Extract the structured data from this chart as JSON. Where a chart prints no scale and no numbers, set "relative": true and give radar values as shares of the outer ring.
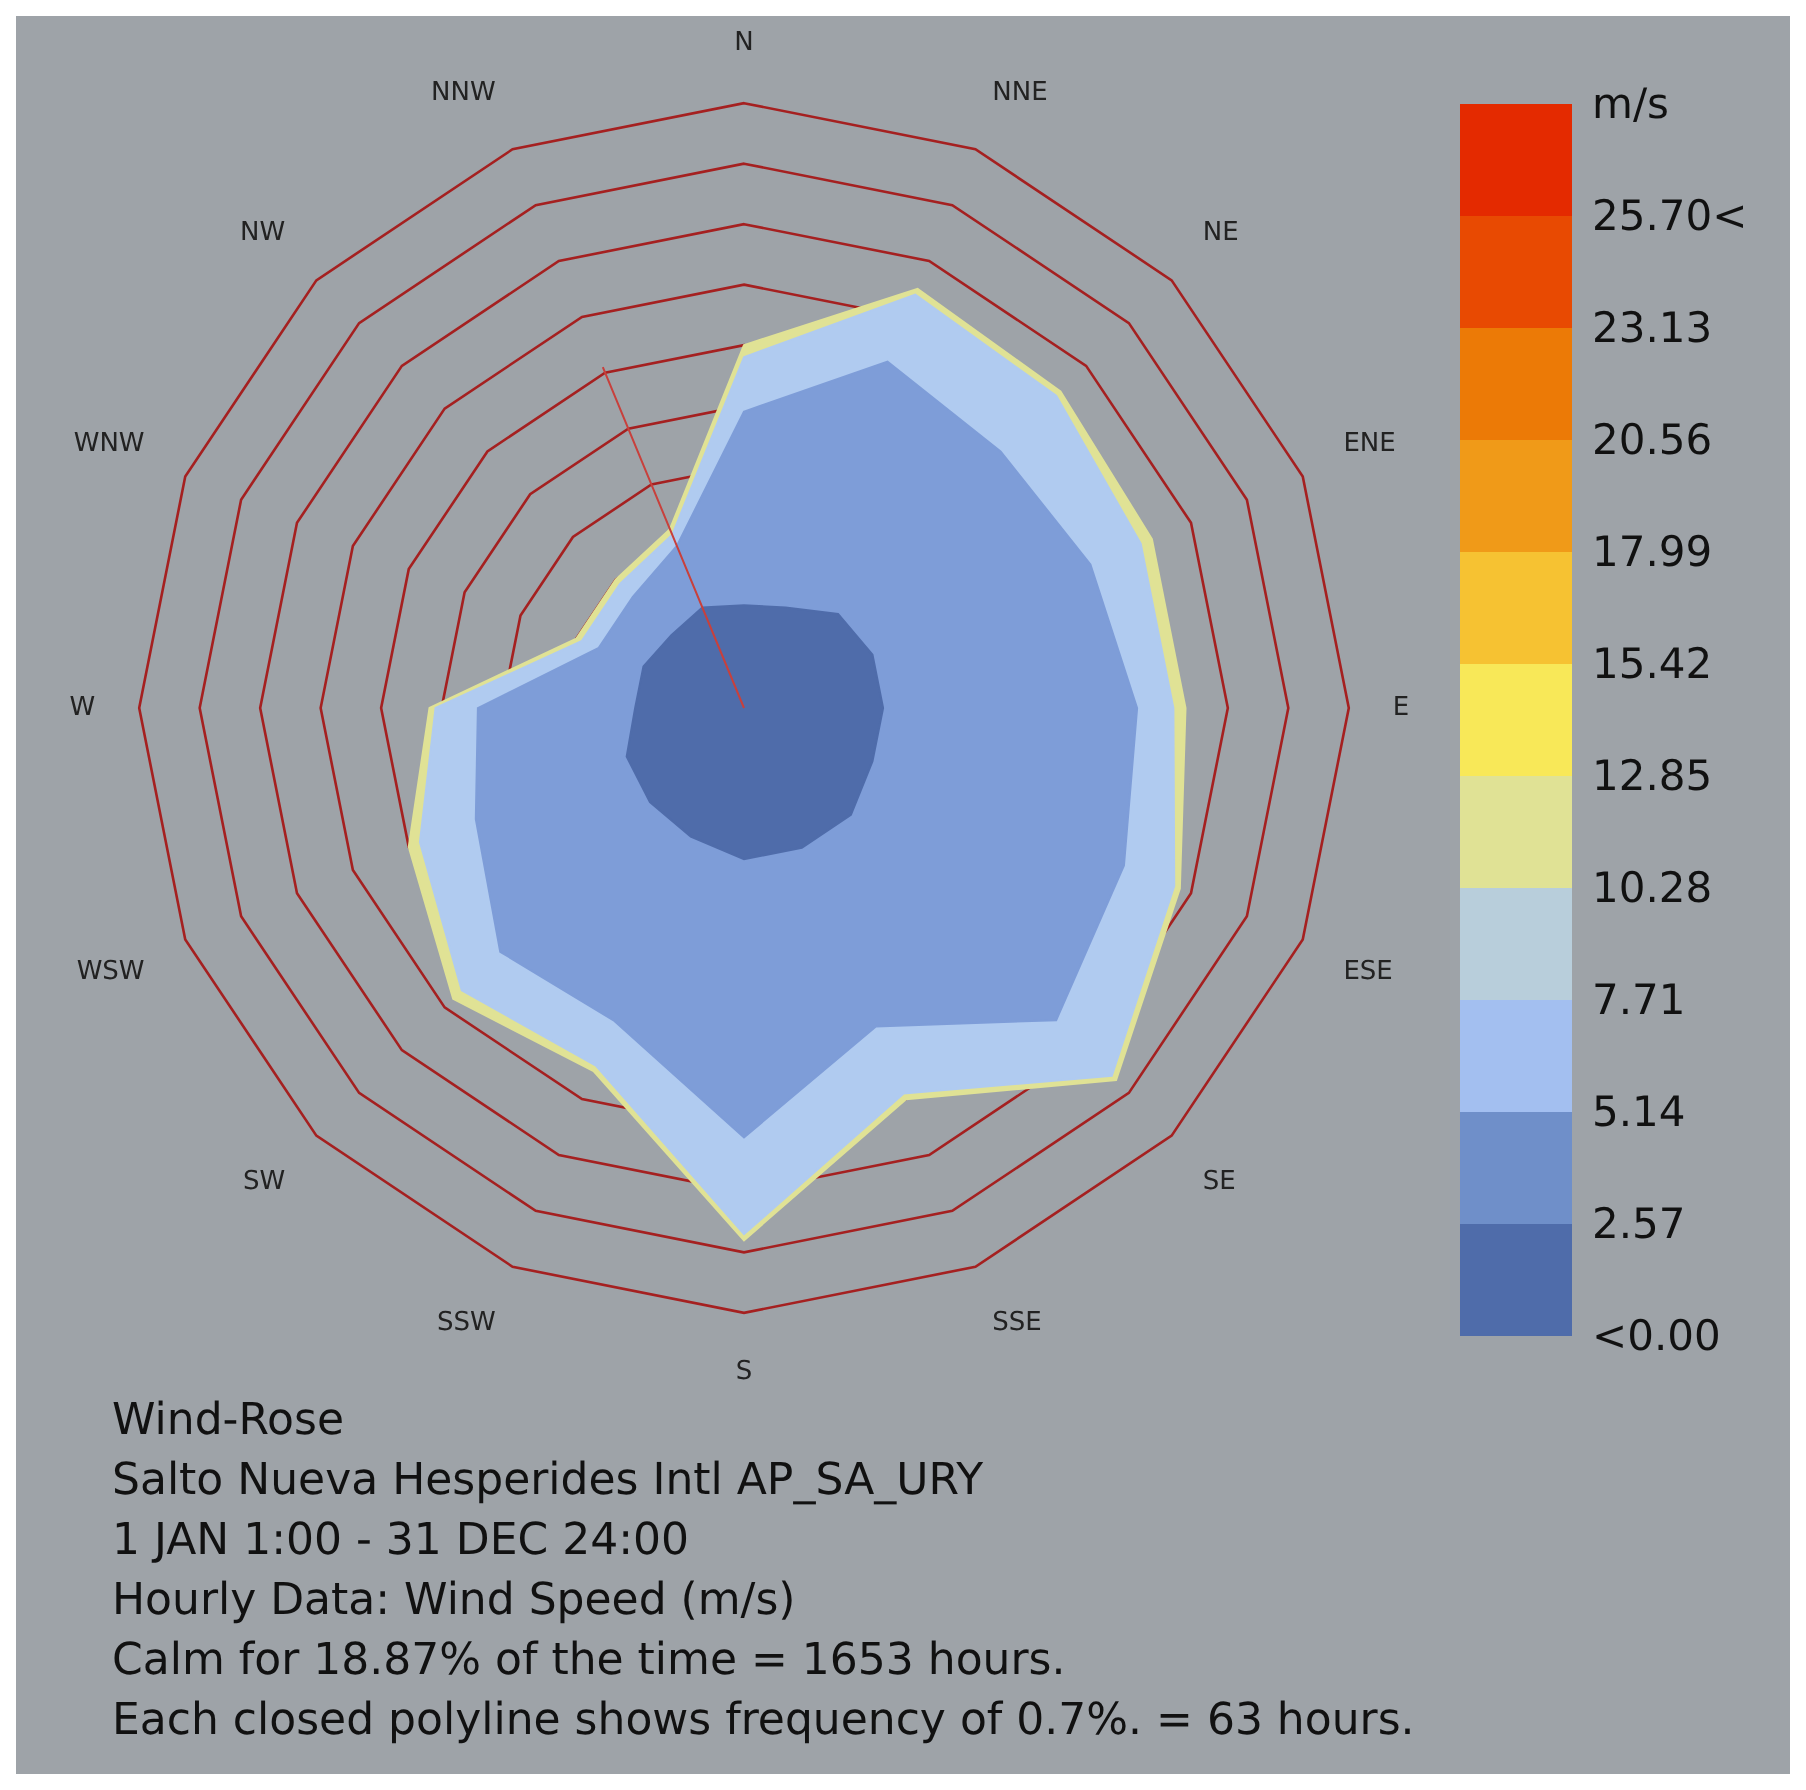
{
  "chart_data": {
    "type": "radar",
    "title": "Wind-Rose",
    "subtitle": "Salto Nueva Hesperides Intl AP_SA_URY",
    "annotations": [
      "1 JAN 1:00 - 31 DEC 24:00",
      "Hourly Data: Wind Speed (m/s)",
      "Calm for 18.87% of the time = 1653 hours.",
      "Each closed polyline shows frequency of 0.7%. = 63 hours.",
      "<0.00",
      "2.57",
      "5.14",
      "7.71",
      "10.28",
      "12.85",
      "15.42",
      "17.99",
      "20.56",
      "23.13",
      "25.70<"
    ],
    "categories": [
      "N",
      "NNE",
      "NE",
      "ENE",
      "E",
      "ESE",
      "SE",
      "SSE",
      "S",
      "SSW",
      "SW",
      "WSW",
      "W",
      "WNW",
      "NW",
      "NNW"
    ],
    "relative": true,
    "series": [
      {
        "color": "#c8403c",
        "values": [
          0,
          0,
          0,
          0,
          0,
          0,
          0,
          0,
          0,
          0,
          0,
          0,
          0,
          0,
          0,
          0.61
        ]
      },
      {
        "color": "#4f6caa",
        "values": [
          0.17,
          0.18,
          0.22,
          0.23,
          0.23,
          0.23,
          0.25,
          0.25,
          0.25,
          0.23,
          0.22,
          0.21,
          0.18,
          0.18,
          0.17,
          0.18
        ]
      },
      {
        "color": "#7e9dd8",
        "values": [
          0.49,
          0.62,
          0.6,
          0.62,
          0.65,
          0.68,
          0.73,
          0.57,
          0.71,
          0.56,
          0.57,
          0.48,
          0.44,
          0.26,
          0.26,
          0.29
        ]
      },
      {
        "color": "#b0cbf0",
        "values": [
          0.58,
          0.74,
          0.73,
          0.71,
          0.71,
          0.77,
          0.86,
          0.69,
          0.87,
          0.64,
          0.66,
          0.58,
          0.51,
          0.29,
          0.29,
          0.31
        ]
      },
      {
        "color": "#e0e295",
        "values": [
          0.6,
          0.75,
          0.74,
          0.73,
          0.73,
          0.78,
          0.87,
          0.7,
          0.88,
          0.65,
          0.68,
          0.6,
          0.52,
          0.3,
          0.3,
          0.32
        ]
      }
    ],
    "grid": true,
    "legend_title": "m/s",
    "colors": [
      "#4f6caa",
      "#6f8fc9",
      "#a3bff0",
      "#b8cedb",
      "#e0e295",
      "#f8e858",
      "#f6c232",
      "#f09a18",
      "#ec7a06",
      "#e84a02",
      "#e42a00"
    ]
  }
}
